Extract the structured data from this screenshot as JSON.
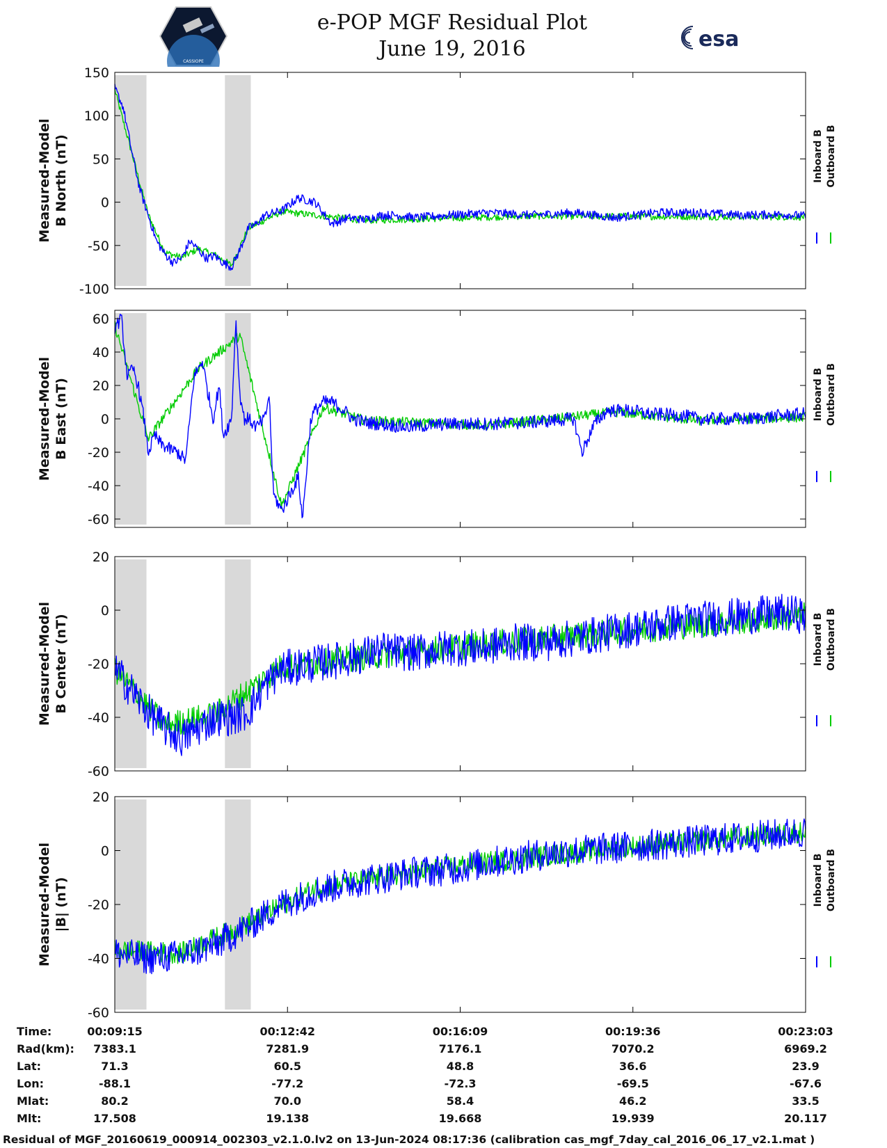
{
  "header": {
    "title": "e-POP MGF Residual Plot",
    "date": "June 19, 2016",
    "left_logo": "CASSIOPE",
    "right_logo": "esa"
  },
  "colors": {
    "inboard": "#0000ff",
    "outboard": "#00cc00",
    "shade": "#d9d9d9",
    "axes": "#000000"
  },
  "legend": [
    "Inboard B",
    "Outboard B"
  ],
  "chart_data": [
    {
      "type": "line",
      "ylabel_lines": [
        "Measured-Model",
        "B North (nT)"
      ],
      "ylim": [
        -100,
        150
      ],
      "yticks": [
        150,
        100,
        50,
        0,
        -50,
        -100
      ],
      "xlim": [
        0,
        828
      ],
      "shaded_intervals": [
        [
          0,
          38
        ],
        [
          132,
          163
        ]
      ],
      "series": [
        {
          "name": "Inboard B",
          "x": [
            0,
            10,
            20,
            30,
            40,
            50,
            60,
            70,
            80,
            90,
            100,
            110,
            120,
            130,
            140,
            150,
            160,
            170,
            180,
            200,
            220,
            240,
            260,
            280,
            300,
            320,
            340,
            360,
            400,
            450,
            500,
            550,
            600,
            650,
            700,
            750,
            800,
            828
          ],
          "y": [
            132,
            110,
            60,
            15,
            -15,
            -45,
            -60,
            -70,
            -65,
            -45,
            -55,
            -65,
            -62,
            -70,
            -75,
            -55,
            -30,
            -25,
            -15,
            -10,
            5,
            0,
            -25,
            -18,
            -20,
            -15,
            -15,
            -18,
            -15,
            -12,
            -15,
            -12,
            -18,
            -12,
            -12,
            -15,
            -14,
            -16
          ],
          "noise": 5
        },
        {
          "name": "Outboard B",
          "x": [
            0,
            20,
            40,
            60,
            80,
            100,
            120,
            140,
            160,
            200,
            300,
            500,
            828
          ],
          "y": [
            130,
            58,
            -14,
            -58,
            -64,
            -54,
            -61,
            -73,
            -30,
            -11,
            -21,
            -16,
            -17
          ],
          "noise": 4
        }
      ]
    },
    {
      "type": "line",
      "ylabel_lines": [
        "Measured-Model",
        "B East (nT)"
      ],
      "ylim": [
        -65,
        65
      ],
      "yticks": [
        60,
        40,
        20,
        0,
        -20,
        -40,
        -60
      ],
      "xlim": [
        0,
        828
      ],
      "shaded_intervals": [
        [
          0,
          38
        ],
        [
          132,
          163
        ]
      ],
      "series": [
        {
          "name": "Inboard B",
          "x": [
            0,
            8,
            15,
            22,
            28,
            35,
            40,
            48,
            55,
            65,
            75,
            85,
            95,
            105,
            110,
            118,
            125,
            130,
            140,
            145,
            150,
            155,
            160,
            170,
            180,
            185,
            190,
            200,
            210,
            220,
            225,
            235,
            240,
            250,
            260,
            275,
            285,
            300,
            350,
            400,
            450,
            500,
            550,
            560,
            575,
            590,
            600,
            620,
            640,
            680,
            700,
            730,
            760,
            800,
            828
          ],
          "y": [
            55,
            60,
            25,
            30,
            20,
            0,
            -20,
            -10,
            -15,
            -18,
            -20,
            -25,
            25,
            35,
            20,
            0,
            20,
            -10,
            0,
            60,
            15,
            0,
            0,
            -5,
            0,
            15,
            -45,
            -55,
            -45,
            -35,
            -60,
            0,
            5,
            10,
            10,
            5,
            0,
            -2,
            -5,
            -3,
            -3,
            -2,
            0,
            -20,
            -3,
            5,
            5,
            5,
            3,
            2,
            0,
            0,
            0,
            2,
            3
          ],
          "noise": 4
        },
        {
          "name": "Outboard B",
          "x": [
            0,
            40,
            100,
            150,
            200,
            250,
            300,
            450,
            600,
            700,
            828
          ],
          "y": [
            56,
            -12,
            30,
            50,
            -52,
            7,
            -1,
            -4,
            4,
            -1,
            1
          ],
          "noise": 3
        }
      ]
    },
    {
      "type": "line",
      "ylabel_lines": [
        "Measured-Model",
        "B Center (nT)"
      ],
      "ylim": [
        -60,
        20
      ],
      "yticks": [
        20,
        0,
        -20,
        -40,
        -60
      ],
      "xlim": [
        0,
        828
      ],
      "shaded_intervals": [
        [
          0,
          38
        ],
        [
          132,
          163
        ]
      ],
      "series": [
        {
          "name": "Inboard B",
          "x": [
            0,
            20,
            40,
            60,
            80,
            100,
            120,
            140,
            160,
            180,
            200,
            240,
            280,
            320,
            360,
            400,
            440,
            480,
            520,
            560,
            600,
            640,
            680,
            720,
            760,
            800,
            828
          ],
          "y": [
            -22,
            -30,
            -38,
            -44,
            -48,
            -44,
            -40,
            -40,
            -38,
            -28,
            -22,
            -20,
            -18,
            -15,
            -16,
            -14,
            -14,
            -12,
            -12,
            -10,
            -8,
            -6,
            -4,
            -3,
            -2,
            -1,
            -2
          ],
          "noise": 7
        },
        {
          "name": "Outboard B",
          "x": [
            0,
            60,
            120,
            200,
            400,
            600,
            828
          ],
          "y": [
            -22,
            -43,
            -39,
            -21,
            -14,
            -8,
            -2
          ],
          "noise": 5
        }
      ]
    },
    {
      "type": "line",
      "ylabel_lines": [
        "Measured-Model",
        "|B| (nT)"
      ],
      "ylim": [
        -60,
        20
      ],
      "yticks": [
        20,
        0,
        -20,
        -40,
        -60
      ],
      "xlim": [
        0,
        828
      ],
      "shaded_intervals": [
        [
          0,
          38
        ],
        [
          132,
          163
        ]
      ],
      "series": [
        {
          "name": "Inboard B",
          "x": [
            0,
            40,
            80,
            120,
            160,
            200,
            240,
            280,
            320,
            360,
            400,
            440,
            480,
            520,
            560,
            600,
            640,
            680,
            720,
            760,
            800,
            828
          ],
          "y": [
            -38,
            -40,
            -39,
            -35,
            -28,
            -20,
            -15,
            -12,
            -10,
            -8,
            -7,
            -5,
            -3,
            -1,
            0,
            1,
            2,
            3,
            4,
            5,
            6,
            7
          ],
          "noise": 6
        },
        {
          "name": "Outboard B",
          "x": [
            0,
            80,
            160,
            240,
            400,
            600,
            828
          ],
          "y": [
            -37,
            -38,
            -27,
            -14,
            -6,
            1,
            7
          ],
          "noise": 4
        }
      ]
    }
  ],
  "ephemeris": {
    "row_labels": [
      "Time:",
      "Rad(km):",
      "Lat:",
      "Lon:",
      "Mlat:",
      "Mlt:"
    ],
    "columns": [
      [
        "00:09:15",
        "7383.1",
        "71.3",
        "-88.1",
        "80.2",
        "17.508"
      ],
      [
        "00:12:42",
        "7281.9",
        "60.5",
        "-77.2",
        "70.0",
        "19.138"
      ],
      [
        "00:16:09",
        "7176.1",
        "48.8",
        "-72.3",
        "58.4",
        "19.668"
      ],
      [
        "00:19:36",
        "7070.2",
        "36.6",
        "-69.5",
        "46.2",
        "19.939"
      ],
      [
        "00:23:03",
        "6969.2",
        "23.9",
        "-67.6",
        "33.5",
        "20.117"
      ]
    ]
  },
  "footer": "Residual of MGF_20160619_000914_002303_v2.1.0.lv2 on 13-Jun-2024 08:17:36 (calibration cas_mgf_7day_cal_2016_06_17_v2.1.mat )"
}
